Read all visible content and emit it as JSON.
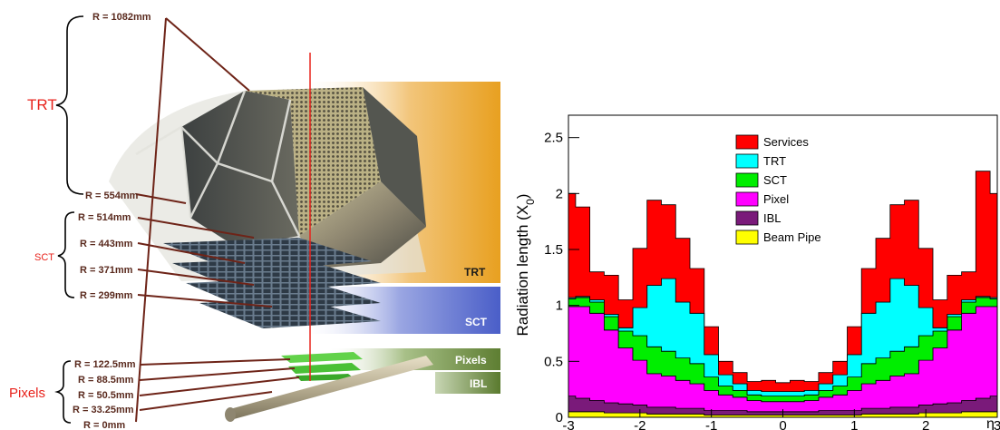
{
  "detector": {
    "groups": [
      {
        "name": "TRT",
        "color": "#e8231c"
      },
      {
        "name": "SCT",
        "color": "#e8231c"
      },
      {
        "name": "Pixels",
        "color": "#e8231c"
      }
    ],
    "radii": [
      {
        "label": "R = 1082mm",
        "group": "TRT"
      },
      {
        "label": "R = 554mm",
        "group": "TRT"
      },
      {
        "label": "R = 514mm",
        "group": "SCT"
      },
      {
        "label": "R = 443mm",
        "group": "SCT"
      },
      {
        "label": "R = 371mm",
        "group": "SCT"
      },
      {
        "label": "R = 299mm",
        "group": "SCT"
      },
      {
        "label": "R = 122.5mm",
        "group": "Pixels"
      },
      {
        "label": "R = 88.5mm",
        "group": "Pixels"
      },
      {
        "label": "R = 50.5mm",
        "group": "Pixels"
      },
      {
        "label": "R = 33.25mm",
        "group": "Pixels"
      },
      {
        "label": "R = 0mm",
        "group": "Pixels"
      }
    ],
    "bands": [
      {
        "label": "TRT",
        "color": "#e8a020"
      },
      {
        "label": "SCT",
        "color": "#4a5ec8"
      },
      {
        "label": "Pixels",
        "color": "#6a8a3a"
      },
      {
        "label": "IBL",
        "color": "#5a7a2e"
      }
    ]
  },
  "chart_data": {
    "type": "area",
    "ylabel": "Radiation length (X",
    "ylabel_sub": "0",
    "ylabel_close": ")",
    "xlabel": "η",
    "xlim": [
      -3,
      3
    ],
    "ylim": [
      0,
      2.7
    ],
    "x_ticks": [
      "-3",
      "-2",
      "-1",
      "0",
      "1",
      "2",
      "3"
    ],
    "y_ticks": [
      "0",
      "0.5",
      "1",
      "1.5",
      "2",
      "2.5"
    ],
    "legend_position": "top-center",
    "x": [
      -3.0,
      -2.8,
      -2.6,
      -2.4,
      -2.2,
      -2.0,
      -1.8,
      -1.6,
      -1.4,
      -1.2,
      -1.0,
      -0.8,
      -0.6,
      -0.4,
      -0.2,
      0.0,
      0.2,
      0.4,
      0.6,
      0.8,
      1.0,
      1.2,
      1.4,
      1.6,
      1.8,
      2.0,
      2.2,
      2.4,
      2.6,
      2.8,
      3.0
    ],
    "series": [
      {
        "name": "Beam Pipe",
        "color": "#ffff00",
        "values": [
          0.05,
          0.05,
          0.05,
          0.04,
          0.04,
          0.04,
          0.03,
          0.03,
          0.03,
          0.03,
          0.02,
          0.02,
          0.02,
          0.02,
          0.02,
          0.02,
          0.02,
          0.02,
          0.02,
          0.02,
          0.02,
          0.03,
          0.03,
          0.03,
          0.03,
          0.04,
          0.04,
          0.04,
          0.05,
          0.05,
          0.05
        ]
      },
      {
        "name": "IBL",
        "color": "#7a1a7a",
        "values": [
          0.14,
          0.12,
          0.1,
          0.09,
          0.08,
          0.07,
          0.06,
          0.06,
          0.05,
          0.05,
          0.04,
          0.04,
          0.04,
          0.03,
          0.03,
          0.03,
          0.03,
          0.03,
          0.04,
          0.04,
          0.04,
          0.05,
          0.05,
          0.06,
          0.06,
          0.07,
          0.08,
          0.09,
          0.1,
          0.12,
          0.14
        ]
      },
      {
        "name": "Pixel",
        "color": "#ff00ff",
        "values": [
          0.8,
          0.82,
          0.78,
          0.65,
          0.5,
          0.4,
          0.3,
          0.28,
          0.25,
          0.22,
          0.18,
          0.14,
          0.12,
          0.1,
          0.09,
          0.09,
          0.09,
          0.1,
          0.12,
          0.14,
          0.18,
          0.22,
          0.25,
          0.28,
          0.3,
          0.4,
          0.5,
          0.65,
          0.78,
          0.82,
          0.8
        ]
      },
      {
        "name": "SCT",
        "color": "#00ee00",
        "values": [
          0.07,
          0.08,
          0.1,
          0.12,
          0.15,
          0.22,
          0.24,
          0.22,
          0.2,
          0.18,
          0.12,
          0.08,
          0.06,
          0.05,
          0.05,
          0.05,
          0.05,
          0.05,
          0.06,
          0.08,
          0.12,
          0.18,
          0.2,
          0.22,
          0.24,
          0.22,
          0.15,
          0.12,
          0.1,
          0.08,
          0.07
        ]
      },
      {
        "name": "TRT",
        "color": "#00ffff",
        "values": [
          0.01,
          0.01,
          0.02,
          0.02,
          0.03,
          0.25,
          0.55,
          0.65,
          0.5,
          0.45,
          0.2,
          0.1,
          0.06,
          0.04,
          0.04,
          0.04,
          0.04,
          0.04,
          0.06,
          0.1,
          0.2,
          0.45,
          0.5,
          0.65,
          0.55,
          0.25,
          0.03,
          0.02,
          0.02,
          0.01,
          0.01
        ]
      },
      {
        "name": "Services",
        "color": "#ff0000",
        "values": [
          0.93,
          0.8,
          0.25,
          0.35,
          0.25,
          0.53,
          0.76,
          0.66,
          0.57,
          0.4,
          0.25,
          0.12,
          0.1,
          0.08,
          0.1,
          0.08,
          0.1,
          0.08,
          0.1,
          0.12,
          0.25,
          0.4,
          0.57,
          0.66,
          0.76,
          0.53,
          0.25,
          0.35,
          0.25,
          1.12,
          0.93
        ]
      }
    ]
  }
}
